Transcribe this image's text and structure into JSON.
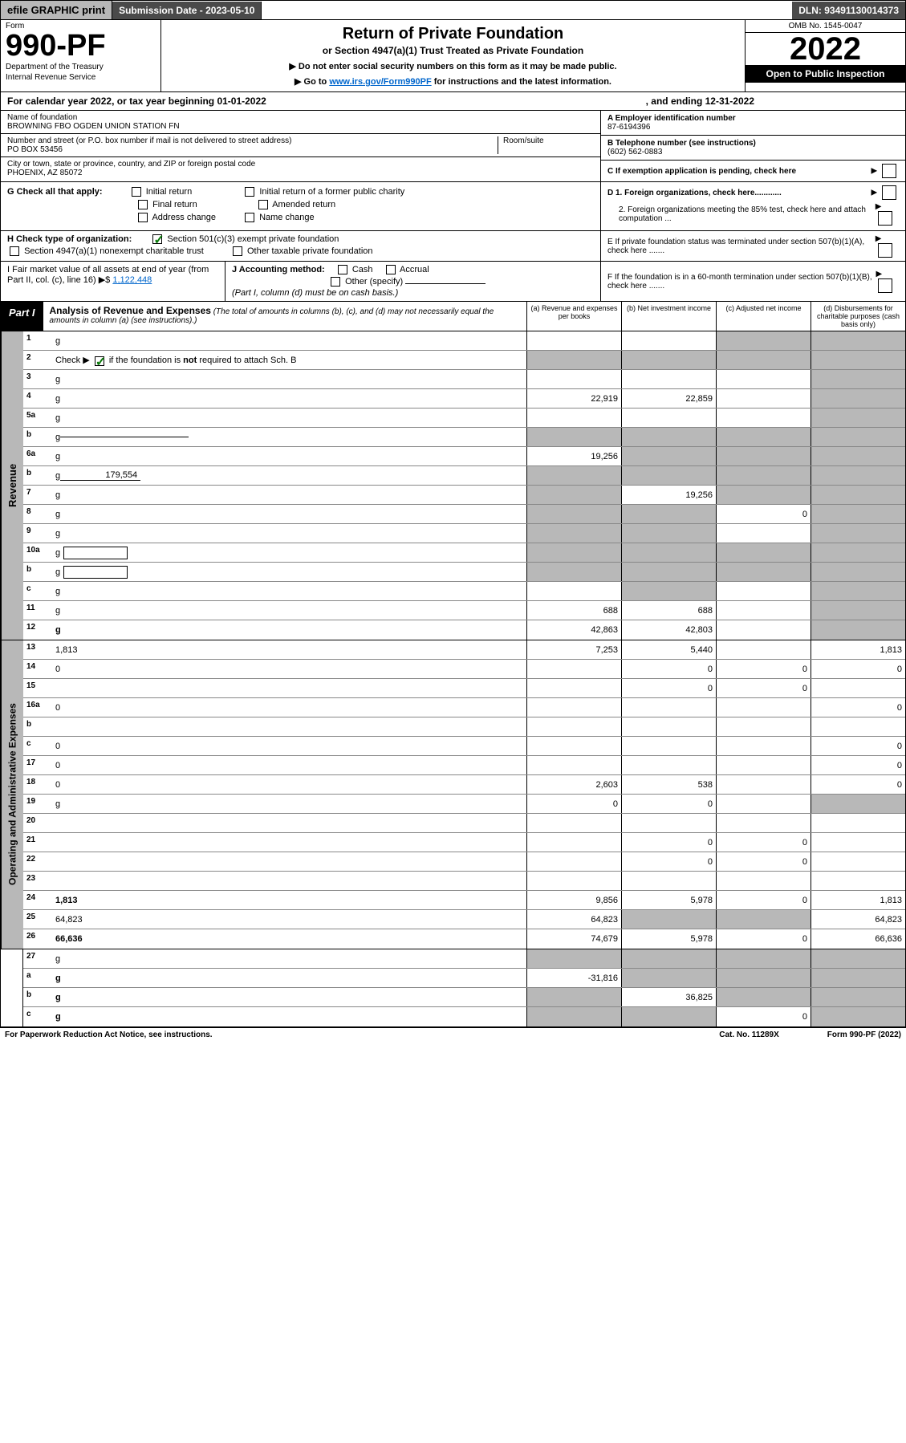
{
  "top_bar": {
    "efile": "efile GRAPHIC print",
    "submission": "Submission Date - 2023-05-10",
    "dln": "DLN: 93491130014373"
  },
  "header": {
    "form_label": "Form",
    "form_num": "990-PF",
    "dept1": "Department of the Treasury",
    "dept2": "Internal Revenue Service",
    "title": "Return of Private Foundation",
    "subtitle": "or Section 4947(a)(1) Trust Treated as Private Foundation",
    "note1": "▶ Do not enter social security numbers on this form as it may be made public.",
    "note2_pre": "▶ Go to ",
    "note2_link": "www.irs.gov/Form990PF",
    "note2_post": " for instructions and the latest information.",
    "omb": "OMB No. 1545-0047",
    "year": "2022",
    "open": "Open to Public Inspection"
  },
  "calendar": {
    "text": "For calendar year 2022, or tax year beginning 01-01-2022",
    "ending": ", and ending 12-31-2022"
  },
  "info": {
    "name_label": "Name of foundation",
    "name": "BROWNING FBO OGDEN UNION STATION FN",
    "addr_label": "Number and street (or P.O. box number if mail is not delivered to street address)",
    "room_label": "Room/suite",
    "addr": "PO BOX 53456",
    "city_label": "City or town, state or province, country, and ZIP or foreign postal code",
    "city": "PHOENIX, AZ  85072",
    "a_label": "A Employer identification number",
    "a_val": "87-6194396",
    "b_label": "B Telephone number (see instructions)",
    "b_val": "(602) 562-0883",
    "c_label": "C If exemption application is pending, check here"
  },
  "g": {
    "label": "G Check all that apply:",
    "opts": [
      "Initial return",
      "Final return",
      "Address change",
      "Initial return of a former public charity",
      "Amended return",
      "Name change"
    ]
  },
  "d": {
    "d1": "D 1. Foreign organizations, check here............",
    "d2": "2. Foreign organizations meeting the 85% test, check here and attach computation ...",
    "e": "E  If private foundation status was terminated under section 507(b)(1)(A), check here .......",
    "f": "F  If the foundation is in a 60-month termination under section 507(b)(1)(B), check here ......."
  },
  "h": {
    "label": "H Check type of organization:",
    "opt1": "Section 501(c)(3) exempt private foundation",
    "opt2": "Section 4947(a)(1) nonexempt charitable trust",
    "opt3": "Other taxable private foundation"
  },
  "i": {
    "label": "I Fair market value of all assets at end of year (from Part II, col. (c), line 16)",
    "arrow": "▶$",
    "val": "1,122,448"
  },
  "j": {
    "label": "J Accounting method:",
    "cash": "Cash",
    "accrual": "Accrual",
    "other": "Other (specify)",
    "note": "(Part I, column (d) must be on cash basis.)"
  },
  "part1": {
    "label": "Part I",
    "title": "Analysis of Revenue and Expenses",
    "desc": "(The total of amounts in columns (b), (c), and (d) may not necessarily equal the amounts in column (a) (see instructions).)",
    "col_a": "(a)  Revenue and expenses per books",
    "col_b": "(b)  Net investment income",
    "col_c": "(c)  Adjusted net income",
    "col_d": "(d)  Disbursements for charitable purposes (cash basis only)"
  },
  "revenue": {
    "side": "Revenue",
    "rows": [
      {
        "n": "1",
        "d": "g",
        "a": "",
        "b": "",
        "c": "g"
      },
      {
        "n": "2",
        "d": "g",
        "dots": true,
        "a": "g",
        "b": "g",
        "c": "g"
      },
      {
        "n": "3",
        "d": "g",
        "a": "",
        "b": "",
        "c": ""
      },
      {
        "n": "4",
        "d": "g",
        "dots": true,
        "a": "22,919",
        "b": "22,859",
        "c": ""
      },
      {
        "n": "5a",
        "d": "g",
        "dots": true,
        "a": "",
        "b": "",
        "c": ""
      },
      {
        "n": "b",
        "d": "g",
        "underline": true,
        "a": "g",
        "b": "g",
        "c": "g"
      },
      {
        "n": "6a",
        "d": "g",
        "a": "19,256",
        "b": "g",
        "c": "g"
      },
      {
        "n": "b",
        "d": "g",
        "inline": "179,554",
        "a": "g",
        "b": "g",
        "c": "g"
      },
      {
        "n": "7",
        "d": "g",
        "dots": true,
        "a": "g",
        "b": "19,256",
        "c": "g"
      },
      {
        "n": "8",
        "d": "g",
        "dots": true,
        "a": "g",
        "b": "g",
        "c": "0"
      },
      {
        "n": "9",
        "d": "g",
        "dots": true,
        "a": "g",
        "b": "g",
        "c": ""
      },
      {
        "n": "10a",
        "d": "g",
        "box": true,
        "a": "g",
        "b": "g",
        "c": "g"
      },
      {
        "n": "b",
        "d": "g",
        "dots": true,
        "box": true,
        "a": "g",
        "b": "g",
        "c": "g"
      },
      {
        "n": "c",
        "d": "g",
        "dots": true,
        "a": "",
        "b": "g",
        "c": ""
      },
      {
        "n": "11",
        "d": "g",
        "dots": true,
        "a": "688",
        "b": "688",
        "c": ""
      },
      {
        "n": "12",
        "d": "g",
        "dots": true,
        "bold": true,
        "a": "42,863",
        "b": "42,803",
        "c": ""
      }
    ]
  },
  "expenses": {
    "side": "Operating and Administrative Expenses",
    "rows": [
      {
        "n": "13",
        "d": "1,813",
        "a": "7,253",
        "b": "5,440",
        "c": ""
      },
      {
        "n": "14",
        "d": "0",
        "dots": true,
        "a": "",
        "b": "0",
        "c": "0"
      },
      {
        "n": "15",
        "d": "",
        "dots": true,
        "a": "",
        "b": "0",
        "c": "0"
      },
      {
        "n": "16a",
        "d": "0",
        "dots": true,
        "a": "",
        "b": "",
        "c": ""
      },
      {
        "n": "b",
        "d": "",
        "dots": true,
        "a": "",
        "b": "",
        "c": ""
      },
      {
        "n": "c",
        "d": "0",
        "dots": true,
        "a": "",
        "b": "",
        "c": ""
      },
      {
        "n": "17",
        "d": "0",
        "dots": true,
        "a": "",
        "b": "",
        "c": ""
      },
      {
        "n": "18",
        "d": "0",
        "dots": true,
        "a": "2,603",
        "b": "538",
        "c": ""
      },
      {
        "n": "19",
        "d": "g",
        "dots": true,
        "a": "0",
        "b": "0",
        "c": ""
      },
      {
        "n": "20",
        "d": "",
        "dots": true,
        "a": "",
        "b": "",
        "c": ""
      },
      {
        "n": "21",
        "d": "",
        "dots": true,
        "a": "",
        "b": "0",
        "c": "0"
      },
      {
        "n": "22",
        "d": "",
        "dots": true,
        "a": "",
        "b": "0",
        "c": "0"
      },
      {
        "n": "23",
        "d": "",
        "dots": true,
        "a": "",
        "b": "",
        "c": ""
      },
      {
        "n": "24",
        "d": "1,813",
        "dots": true,
        "bold": true,
        "a": "9,856",
        "b": "5,978",
        "c": "0"
      },
      {
        "n": "25",
        "d": "64,823",
        "dots": true,
        "a": "64,823",
        "b": "g",
        "c": "g"
      },
      {
        "n": "26",
        "d": "66,636",
        "bold": true,
        "a": "74,679",
        "b": "5,978",
        "c": "0"
      }
    ]
  },
  "line27": {
    "rows": [
      {
        "n": "27",
        "d": "g",
        "a": "g",
        "b": "g",
        "c": "g"
      },
      {
        "n": "a",
        "d": "g",
        "bold": true,
        "a": "-31,816",
        "b": "g",
        "c": "g"
      },
      {
        "n": "b",
        "d": "g",
        "bold": true,
        "a": "g",
        "b": "36,825",
        "c": "g"
      },
      {
        "n": "c",
        "d": "g",
        "dots": true,
        "bold": true,
        "a": "g",
        "b": "g",
        "c": "0"
      }
    ]
  },
  "footer": {
    "left": "For Paperwork Reduction Act Notice, see instructions.",
    "mid": "Cat. No. 11289X",
    "right": "Form 990-PF (2022)"
  }
}
